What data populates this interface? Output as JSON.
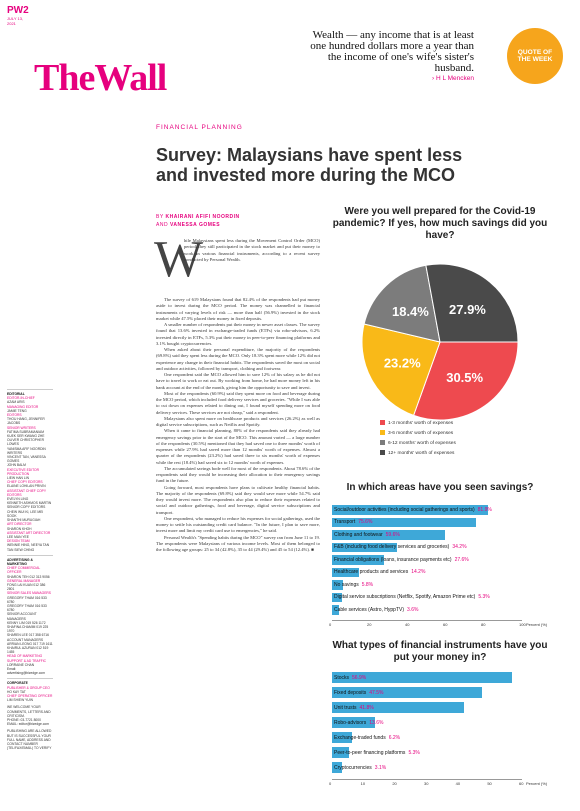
{
  "page": {
    "code": "PW2",
    "date": "JULY 13, 2021"
  },
  "quote": {
    "text": "Wealth — any income that is at least one hundred dollars more a year than the income of one's wife's sister's husband.",
    "attribution": "› H L Mencken",
    "badge": "QUOTE OF THE WEEK"
  },
  "masthead": "TheWall",
  "kicker": "FINANCIAL PLANNING",
  "headline": "Survey: Malaysians have spent less and invested more during the MCO",
  "byline": {
    "by": "BY",
    "author1": "KHAIRANI AFIFI NOORDIN",
    "and": "AND",
    "author2": "VANESSA GOMES"
  },
  "article": {
    "dropcap": "W",
    "lead": "hile Malaysians spent less during the Movement Control Order (MCO) period, they still participated in the stock market and put their money to work in various financial instruments, according to a recent survey conducted by Personal Wealth.",
    "paragraphs": [
      "The survey of 619 Malaysians found that 82.4% of the respondents had put money aside to invest during the MCO period. The money was channelled to financial instruments of varying levels of risk — more than half (56.9%) invested in the stock market while 47.5% placed their money in fixed deposits.",
      "A smaller number of respondents put their money in newer asset classes. The survey found that 13.6% invested in exchange-traded funds (ETFs) via robo-advisors, 6.2% invested directly in ETFs, 5.3% put their money in peer-to-peer financing platforms and 3.1% bought cryptocurrencies.",
      "When asked about their personal expenditure, the majority of the respondents (69.8%) said they spent less during the MCO. Only 18.3% spent more while 12% did not experience any change in their financial habits. The respondents saved the most on social and outdoor activities, followed by transport, clothing and footwear.",
      "One respondent said the MCO allowed him to save 12% of his salary as he did not have to travel to work or eat out. By working from home, he had more money left in his bank account at the end of the month, giving him the opportunity to save and invest.",
      "Most of the respondents (60.9%) said they spent more on food and beverage during the MCO period, which included food delivery services and groceries. \"While I was able to cut down on expenses related to dining out, I found myself spending more on food delivery services. These services are not cheap,\" said a respondent.",
      "Malaysians also spent more on healthcare products and services (26.2%) as well as digital service subscriptions, such as Netflix and Spotify.",
      "When it came to financial planning, 80% of the respondents said they already had emergency savings prior to the start of the MCO. This amount varied — a large number of the respondents (30.5%) mentioned that they had saved one to three months' worth of expenses while 27.9% had saved more than 12 months' worth of expenses. Almost a quarter of the respondents (23.2%) had saved three to six months' worth of expenses while the rest (18.4%) had saved six to 12 months' worth of expenses.",
      "The accumulated savings bode well for most of the respondents. About 78.6% of the respondents said they would be increasing their allocation to their emergency savings fund in the future.",
      "Going forward, most respondents have plans to cultivate healthy financial habits. The majority of the respondents (69.8%) said they would save more while 54.7% said they would invest more. The respondents also plan to reduce their expenses related to social and outdoor gatherings, food and beverage, digital service subscriptions and transport.",
      "One respondent, who managed to reduce his expenses for social gatherings, used the money to settle his outstanding credit card balance. \"In the future, I plan to save more, invest more and limit my credit card use to emergencies,\" he said.",
      "Personal Wealth's \"Spending habits during the MCO\" survey ran from June 11 to 19. The respondents were Malaysians of various income levels. Most of them belonged to the following age groups: 25 to 34 (42.8%), 35 to 44 (29.4%) and 45 to 54 (12.4%). ■"
    ]
  },
  "credits": [
    {
      "section": "EDITORIAL",
      "lines": [
        "EDITOR-IN-CHIEF",
        "AZAM ARIS",
        "MANAGING EDITOR",
        "JAMIE TENG",
        "EDITORS",
        "THOU HANG, JENNIFER JACOBS",
        "SENIOR WRITERS",
        "FATIMA SUBRAMANIAM",
        "KUEK SER KWANG ZHE",
        "OLIVER CHRISTOPHER LOWES",
        "YANISMA AFIF NOORDIN",
        "WRITERS",
        "VINCENT TAN, VANESSA GOMES",
        "JOHN BALM",
        "EXECUTIVE EDITOR PRODUCTION",
        "LIEW HAN LIN",
        "CHIEF COPY EDITORS",
        "ELAINE LOHILAN PRIVIN",
        "ASSISTANT CHIEF COPY EDITORS",
        "EVELYN LING",
        "KENNETH ASHMOS MARTIN",
        "SENIOR COPY EDITORS",
        "CHEW WUI KI, LEE MEI SOOK",
        "SHANTHI MURUGIAH",
        "ART DIRECTOR",
        "SHARON KHOH",
        "ASSISTANT ART DIRECTOR",
        "LEE MAN YEE",
        "DESIGN TEAM",
        "WENNIE HING, NEEYA TAN",
        "TAN SIEW CHING"
      ]
    },
    {
      "section": "ADVERTISING & MARKETING",
      "lines": [
        "CHIEF COMMERCIAL OFFICER",
        "SHARON TEH 012 313 9056",
        "GENERAL MANAGER",
        "FONG LAI KUAN 012 386 2801",
        "SENIOR SALES MANAGERS",
        "GREGORY THAM 016 533 6780",
        "GREGORY THAM 016 533 6780",
        "SENIOR ACCOUNT MANAGERS",
        "KENNY LIM 019 526 1172",
        "SHAFINA CHAMIM 019 225 1970",
        "SHAREN LEE 017 358 6716",
        "ACCOUNT MANAGERS",
        "ARRIAN LEONG 017 719 1611",
        "KHAIRUL AZURAN 012 519 1455",
        "HEAD OF MARKETING SUPPORT & AD TRAFFIC",
        "LORRAINE CHAN",
        "Email: advertising@bizedge.com"
      ]
    },
    {
      "section": "CORPORATE",
      "lines": [
        "PUBLISHER & GROUP CEO",
        "HO KAY TAT",
        "CHIEF OPERATING OFFICER",
        "LIM SHIEW YUIN",
        "",
        "WE WELCOME YOUR COMMENTS, LETTERS AND CRITICISM.",
        "PHONE: 03-7721 8000",
        "EMAIL: editor@bizedge.com",
        "",
        "PUBLISHING ARE ALLOWED BUT IS SUCCESSFUL YOUR FULL NAME, ADDRESS AND CONTACT NUMBER (TEL/FAX/EMAIL) TO VERIFY"
      ]
    }
  ],
  "chart_data": [
    {
      "type": "pie",
      "title": "Were you well prepared for the Covid-19 pandemic? If yes, how much savings did you have?",
      "categories": [
        "1-3 months' worth of expenses",
        "3-6 months' worth of expenses",
        "6-12 months' worth of expenses",
        "12+ months' worth of expenses"
      ],
      "values": [
        30.5,
        23.2,
        18.4,
        27.9
      ],
      "labels": [
        "30.5%",
        "23.2%",
        "18.4%",
        "27.9%"
      ],
      "colors": [
        "#ee4a4f",
        "#f9b918",
        "#7c7c7c",
        "#4a4a4a"
      ],
      "legend": "bottom-left"
    },
    {
      "type": "bar",
      "orientation": "horizontal",
      "title": "In which areas have you seen savings?",
      "categories": [
        "Social/outdoor activities (including social gatherings and sports)",
        "Transport",
        "Clothing and footwear",
        "F&B (including food delivery services and groceries)",
        "Financial obligations (loans, insurance payments etc)",
        "Healthcare products and services",
        "No savings",
        "Digital service subscriptions (Netflix, Spotify, Amazon Prime etc)",
        "Cable services (Astro, HyppTV)"
      ],
      "values": [
        81.9,
        75.6,
        59.6,
        34.2,
        27.6,
        14.2,
        5.8,
        5.3,
        3.6
      ],
      "value_labels": [
        "81.9%",
        "75.6%",
        "59.6%",
        "34.2%",
        "27.6%",
        "14.2%",
        "5.8%",
        "5.3%",
        "3.6%"
      ],
      "xticks": [
        "0",
        "20",
        "40",
        "60",
        "80",
        "100"
      ],
      "xunit": "Percent (%)",
      "xlim": [
        0,
        100
      ],
      "color": "#3ea8d8"
    },
    {
      "type": "bar",
      "orientation": "horizontal",
      "title": "What types of financial instruments have you put your money in?",
      "categories": [
        "Stocks",
        "Fixed deposits",
        "Unit trusts",
        "Robo-advisors",
        "Exchange-traded funds",
        "Peer-to-peer financing platforms",
        "Cryptocurrencies"
      ],
      "values": [
        56.9,
        47.5,
        41.8,
        13.6,
        6.2,
        5.3,
        3.1
      ],
      "value_labels": [
        "56.9%",
        "47.5%",
        "41.8%",
        "13.6%",
        "6.2%",
        "5.3%",
        "3.1%"
      ],
      "xticks": [
        "0",
        "10",
        "20",
        "30",
        "40",
        "50",
        "60"
      ],
      "xunit": "Percent (%)",
      "xlim": [
        0,
        60
      ],
      "color": "#3ea8d8"
    }
  ]
}
